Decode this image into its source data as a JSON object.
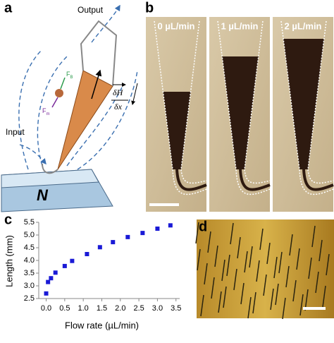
{
  "panel_labels": [
    "a",
    "b",
    "c",
    "d"
  ],
  "diagram": {
    "output": "Output",
    "input": "Input",
    "magnet": "N",
    "force_b": {
      "label": "F",
      "subscript": "B"
    },
    "force_m": {
      "label": "F",
      "subscript": "m"
    },
    "gradient_numerator": "δH",
    "gradient_denominator": "δx"
  },
  "photos": {
    "labels": [
      "0 µL/min",
      "1 µL/min",
      "2 µL/min"
    ]
  },
  "chart_data": {
    "type": "scatter",
    "x_label": "Flow rate (µL/min)",
    "y_label": "Length (mm)",
    "x": [
      0.0,
      0.05,
      0.13,
      0.25,
      0.5,
      0.7,
      1.1,
      1.45,
      1.8,
      2.2,
      2.6,
      3.0,
      3.35
    ],
    "values": [
      2.7,
      3.15,
      3.3,
      3.52,
      3.78,
      3.98,
      4.25,
      4.52,
      4.72,
      4.92,
      5.08,
      5.25,
      5.38
    ],
    "color": "#1a1ad6",
    "xlim": [
      -0.2,
      3.6
    ],
    "ylim": [
      2.5,
      5.5
    ],
    "xticks": [
      {
        "value": 0,
        "label": "0.0"
      },
      0.5,
      {
        "value": 1,
        "label": "1.0"
      },
      1.5,
      {
        "value": 2,
        "label": "2.0"
      },
      2.5,
      {
        "value": 3,
        "label": "3.0"
      },
      3.5
    ],
    "yticks": [
      2.5,
      {
        "value": 3,
        "label": "3.0"
      },
      3.5,
      {
        "value": 4,
        "label": "4.0"
      },
      4.5,
      {
        "value": 5,
        "label": "5.0"
      },
      5.5
    ],
    "grid": false
  }
}
